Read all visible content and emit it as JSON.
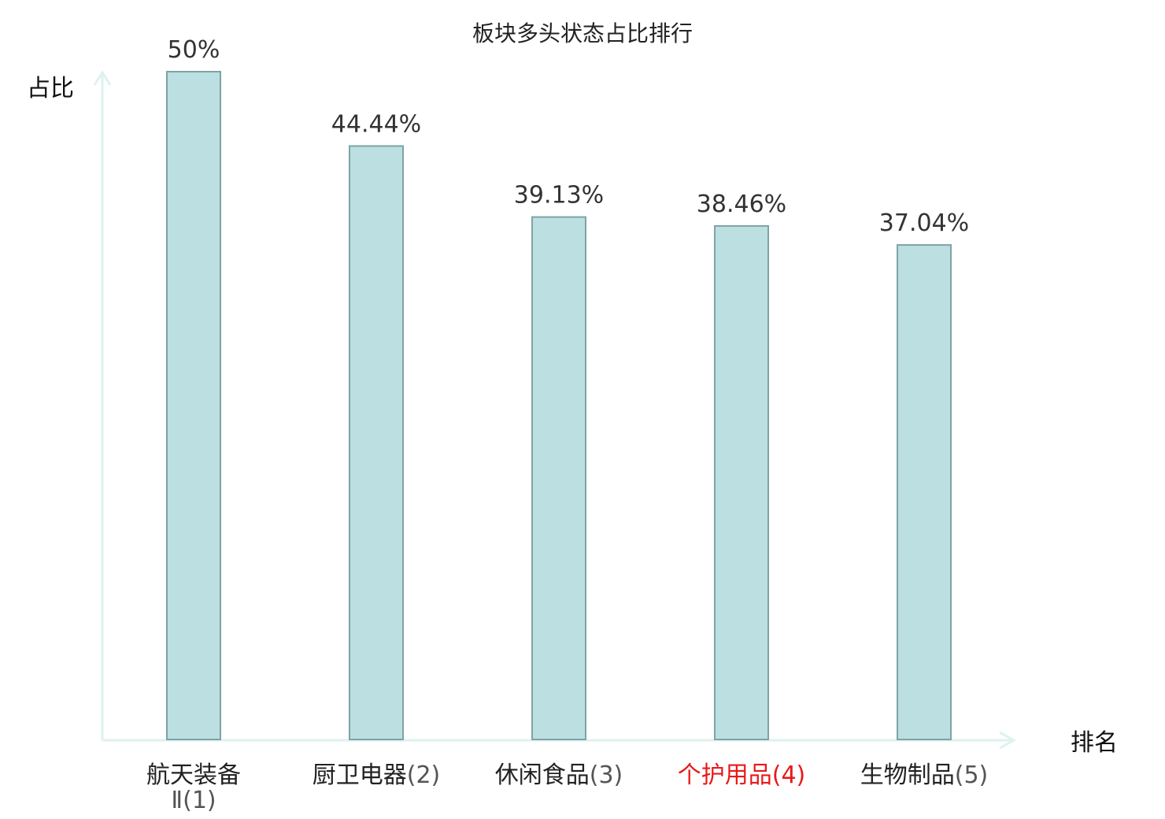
{
  "chart_data": {
    "type": "bar",
    "title": "板块多头状态占比排行",
    "xlabel": "排名",
    "ylabel": "占比",
    "ylim": [
      0,
      50
    ],
    "grid": false,
    "categories": [
      {
        "name": "航天装备Ⅱ",
        "rank": "(1)",
        "label": "航天装备Ⅱ(1)",
        "highlight": false
      },
      {
        "name": "厨卫电器",
        "rank": "(2)",
        "label": "厨卫电器(2)",
        "highlight": false
      },
      {
        "name": "休闲食品",
        "rank": "(3)",
        "label": "休闲食品(3)",
        "highlight": false
      },
      {
        "name": "个护用品",
        "rank": "(4)",
        "label": "个护用品(4)",
        "highlight": true
      },
      {
        "name": "生物制品",
        "rank": "(5)",
        "label": "生物制品(5)",
        "highlight": false
      }
    ],
    "values": [
      50,
      44.44,
      39.13,
      38.46,
      37.04
    ],
    "value_labels": [
      "50%",
      "44.44%",
      "39.13%",
      "38.46%",
      "37.04%"
    ]
  },
  "colors": {
    "bar_fill": "#bce0e2",
    "bar_stroke": "#7fa3a5",
    "axis": "#def2f0",
    "highlight": "#e8191a",
    "text": "#222222"
  }
}
